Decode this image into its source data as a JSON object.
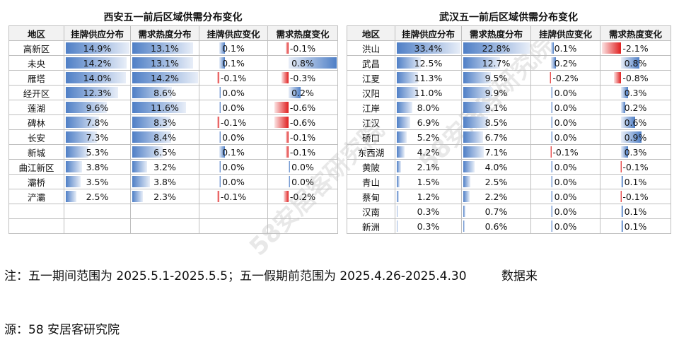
{
  "chart_data": [
    {
      "type": "table",
      "title": "西安五一前后区域供需分布变化",
      "columns": [
        "地区",
        "挂牌供应分布",
        "需求热度分布",
        "挂牌供应变化",
        "需求热度变化"
      ],
      "rows": [
        {
          "region": "高新区",
          "supply": "14.9%",
          "demand": "13.1%",
          "supply_change": "0.1%",
          "demand_change": "-0.1%",
          "s": 14.9,
          "d": 13.1,
          "sc": 0.1,
          "dc": -0.1
        },
        {
          "region": "未央",
          "supply": "14.2%",
          "demand": "13.1%",
          "supply_change": "0.1%",
          "demand_change": "0.8%",
          "s": 14.2,
          "d": 13.1,
          "sc": 0.1,
          "dc": 0.8
        },
        {
          "region": "雁塔",
          "supply": "14.0%",
          "demand": "14.2%",
          "supply_change": "-0.1%",
          "demand_change": "-0.3%",
          "s": 14.0,
          "d": 14.2,
          "sc": -0.1,
          "dc": -0.3
        },
        {
          "region": "经开区",
          "supply": "12.3%",
          "demand": "8.6%",
          "supply_change": "0.0%",
          "demand_change": "0.2%",
          "s": 12.3,
          "d": 8.6,
          "sc": 0.0,
          "dc": 0.2
        },
        {
          "region": "莲湖",
          "supply": "9.6%",
          "demand": "11.6%",
          "supply_change": "0.0%",
          "demand_change": "-0.6%",
          "s": 9.6,
          "d": 11.6,
          "sc": 0.0,
          "dc": -0.6
        },
        {
          "region": "碑林",
          "supply": "7.8%",
          "demand": "8.3%",
          "supply_change": "-0.1%",
          "demand_change": "-0.6%",
          "s": 7.8,
          "d": 8.3,
          "sc": -0.1,
          "dc": -0.6
        },
        {
          "region": "长安",
          "supply": "7.3%",
          "demand": "8.4%",
          "supply_change": "0.0%",
          "demand_change": "-0.1%",
          "s": 7.3,
          "d": 8.4,
          "sc": 0.0,
          "dc": -0.1
        },
        {
          "region": "新城",
          "supply": "5.3%",
          "demand": "6.5%",
          "supply_change": "0.1%",
          "demand_change": "-0.1%",
          "s": 5.3,
          "d": 6.5,
          "sc": 0.1,
          "dc": -0.1
        },
        {
          "region": "曲江新区",
          "supply": "3.8%",
          "demand": "3.2%",
          "supply_change": "0.0%",
          "demand_change": "0.0%",
          "s": 3.8,
          "d": 3.2,
          "sc": 0.0,
          "dc": 0.0
        },
        {
          "region": "灞桥",
          "supply": "3.5%",
          "demand": "3.8%",
          "supply_change": "0.0%",
          "demand_change": "0.0%",
          "s": 3.5,
          "d": 3.8,
          "sc": 0.0,
          "dc": 0.0
        },
        {
          "region": "浐灞",
          "supply": "2.5%",
          "demand": "2.3%",
          "supply_change": "-0.1%",
          "demand_change": "-0.2%",
          "s": 2.5,
          "d": 2.3,
          "sc": -0.1,
          "dc": -0.2
        }
      ]
    },
    {
      "type": "table",
      "title": "武汉五一前后区域供需分布变化",
      "columns": [
        "地区",
        "挂牌供应分布",
        "需求热度分布",
        "挂牌供应变化",
        "需求热度变化"
      ],
      "rows": [
        {
          "region": "洪山",
          "supply": "33.4%",
          "demand": "22.8%",
          "supply_change": "0.1%",
          "demand_change": "-2.1%",
          "s": 33.4,
          "d": 22.8,
          "sc": 0.1,
          "dc": -2.1
        },
        {
          "region": "武昌",
          "supply": "12.5%",
          "demand": "12.7%",
          "supply_change": "0.2%",
          "demand_change": "0.8%",
          "s": 12.5,
          "d": 12.7,
          "sc": 0.2,
          "dc": 0.8
        },
        {
          "region": "江夏",
          "supply": "11.3%",
          "demand": "9.5%",
          "supply_change": "-0.2%",
          "demand_change": "-0.8%",
          "s": 11.3,
          "d": 9.5,
          "sc": -0.2,
          "dc": -0.8
        },
        {
          "region": "汉阳",
          "supply": "11.0%",
          "demand": "9.9%",
          "supply_change": "0.0%",
          "demand_change": "0.3%",
          "s": 11.0,
          "d": 9.9,
          "sc": 0.0,
          "dc": 0.3
        },
        {
          "region": "江岸",
          "supply": "8.0%",
          "demand": "9.1%",
          "supply_change": "0.0%",
          "demand_change": "0.2%",
          "s": 8.0,
          "d": 9.1,
          "sc": 0.0,
          "dc": 0.2
        },
        {
          "region": "江汉",
          "supply": "6.9%",
          "demand": "8.5%",
          "supply_change": "0.0%",
          "demand_change": "0.6%",
          "s": 6.9,
          "d": 8.5,
          "sc": 0.0,
          "dc": 0.6
        },
        {
          "region": "硚口",
          "supply": "5.2%",
          "demand": "6.7%",
          "supply_change": "0.0%",
          "demand_change": "0.9%",
          "s": 5.2,
          "d": 6.7,
          "sc": 0.0,
          "dc": 0.9
        },
        {
          "region": "东西湖",
          "supply": "4.2%",
          "demand": "7.1%",
          "supply_change": "-0.1%",
          "demand_change": "0.3%",
          "s": 4.2,
          "d": 7.1,
          "sc": -0.1,
          "dc": 0.3
        },
        {
          "region": "黄陂",
          "supply": "2.1%",
          "demand": "4.0%",
          "supply_change": "0.0%",
          "demand_change": "-0.1%",
          "s": 2.1,
          "d": 4.0,
          "sc": 0.0,
          "dc": -0.1
        },
        {
          "region": "青山",
          "supply": "1.5%",
          "demand": "2.5%",
          "supply_change": "0.0%",
          "demand_change": "0.1%",
          "s": 1.5,
          "d": 2.5,
          "sc": 0.0,
          "dc": 0.1
        },
        {
          "region": "蔡甸",
          "supply": "1.2%",
          "demand": "2.2%",
          "supply_change": "0.0%",
          "demand_change": "-0.1%",
          "s": 1.2,
          "d": 2.2,
          "sc": 0.0,
          "dc": -0.1
        },
        {
          "region": "汉南",
          "supply": "0.3%",
          "demand": "0.7%",
          "supply_change": "0.0%",
          "demand_change": "0.1%",
          "s": 0.3,
          "d": 0.7,
          "sc": 0.0,
          "dc": 0.1
        },
        {
          "region": "新洲",
          "supply": "0.3%",
          "demand": "0.6%",
          "supply_change": "0.0%",
          "demand_change": "0.1%",
          "s": 0.3,
          "d": 0.6,
          "sc": 0.0,
          "dc": 0.1
        }
      ]
    }
  ],
  "note": {
    "line1": "注：五一期间范围为 2025.5.1-2025.5.5；五一假期前范围为 2025.4.26-2025.4.30",
    "line1_right": "数据来",
    "line2": "源：58 安居客研究院"
  },
  "watermark": "58安居客研究院",
  "colors": {
    "bar_blue": "#4f7fc6",
    "bar_red": "#e02020",
    "header_bg": "#f2f2f2",
    "grid": "#bfbfbf"
  }
}
